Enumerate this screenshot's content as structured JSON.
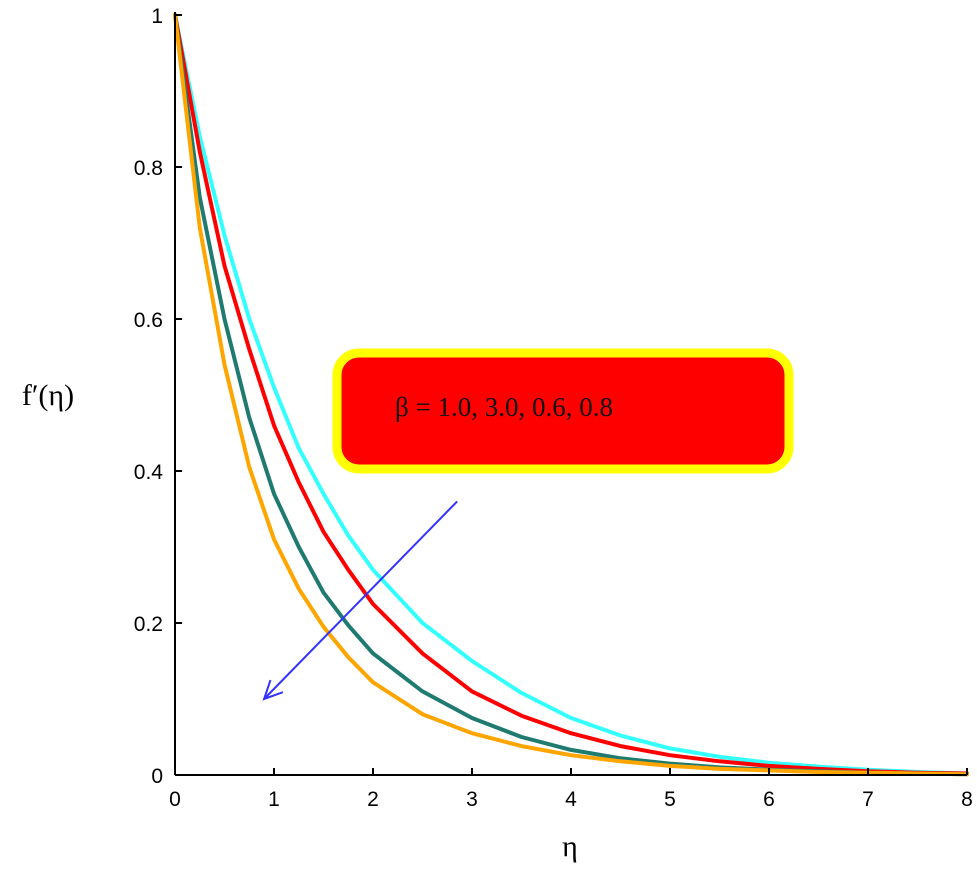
{
  "chart_data": {
    "type": "line",
    "title": "",
    "xlabel": "η",
    "ylabel": "f′(η)",
    "xlim": [
      0,
      8
    ],
    "ylim": [
      0,
      1
    ],
    "x_ticks": [
      "0",
      "1",
      "2",
      "3",
      "4",
      "5",
      "6",
      "7",
      "8"
    ],
    "y_ticks": [
      "0",
      "0.2",
      "0.4",
      "0.6",
      "0.8",
      "1"
    ],
    "grid": false,
    "legend": "none",
    "annotation": {
      "text": "β = 1.0, 3.0, 0.6, 0.8",
      "box_fill": "#ff0000",
      "box_border": "#ffff00",
      "arrow_color": "#3333ff",
      "arrow_from": [
        2.85,
        0.36
      ],
      "arrow_to": [
        0.9,
        0.1
      ]
    },
    "series": [
      {
        "color": "#33ffff",
        "x": [
          0,
          0.25,
          0.5,
          0.75,
          1,
          1.25,
          1.5,
          1.75,
          2,
          2.5,
          3,
          3.5,
          4,
          4.5,
          5,
          5.5,
          6,
          6.5,
          7,
          7.5,
          8
        ],
        "y": [
          1,
          0.84,
          0.71,
          0.6,
          0.51,
          0.43,
          0.37,
          0.315,
          0.27,
          0.2,
          0.15,
          0.108,
          0.075,
          0.052,
          0.035,
          0.024,
          0.016,
          0.011,
          0.007,
          0.004,
          0.002
        ]
      },
      {
        "color": "#ff0000",
        "x": [
          0,
          0.25,
          0.5,
          0.75,
          1,
          1.25,
          1.5,
          1.75,
          2,
          2.5,
          3,
          3.5,
          4,
          4.5,
          5,
          5.5,
          6,
          6.5,
          7,
          7.5,
          8
        ],
        "y": [
          1,
          0.82,
          0.67,
          0.56,
          0.46,
          0.385,
          0.32,
          0.27,
          0.225,
          0.16,
          0.11,
          0.078,
          0.055,
          0.038,
          0.026,
          0.018,
          0.012,
          0.008,
          0.005,
          0.003,
          0.002
        ]
      },
      {
        "color": "#1f7a70",
        "x": [
          0,
          0.25,
          0.5,
          0.75,
          1,
          1.25,
          1.5,
          1.75,
          2,
          2.5,
          3,
          3.5,
          4,
          4.5,
          5,
          5.5,
          6,
          6.5,
          7,
          7.5,
          8
        ],
        "y": [
          1,
          0.76,
          0.6,
          0.47,
          0.37,
          0.3,
          0.24,
          0.197,
          0.16,
          0.11,
          0.075,
          0.05,
          0.033,
          0.022,
          0.015,
          0.01,
          0.007,
          0.005,
          0.003,
          0.002,
          0.001
        ]
      },
      {
        "color": "#ffa500",
        "x": [
          0,
          0.25,
          0.5,
          0.75,
          1,
          1.25,
          1.5,
          1.75,
          2,
          2.5,
          3,
          3.5,
          4,
          4.5,
          5,
          5.5,
          6,
          6.5,
          7,
          7.5,
          8
        ],
        "y": [
          1,
          0.72,
          0.54,
          0.405,
          0.31,
          0.245,
          0.195,
          0.155,
          0.122,
          0.08,
          0.055,
          0.038,
          0.026,
          0.018,
          0.012,
          0.008,
          0.006,
          0.004,
          0.003,
          0.002,
          0.001
        ]
      }
    ]
  }
}
